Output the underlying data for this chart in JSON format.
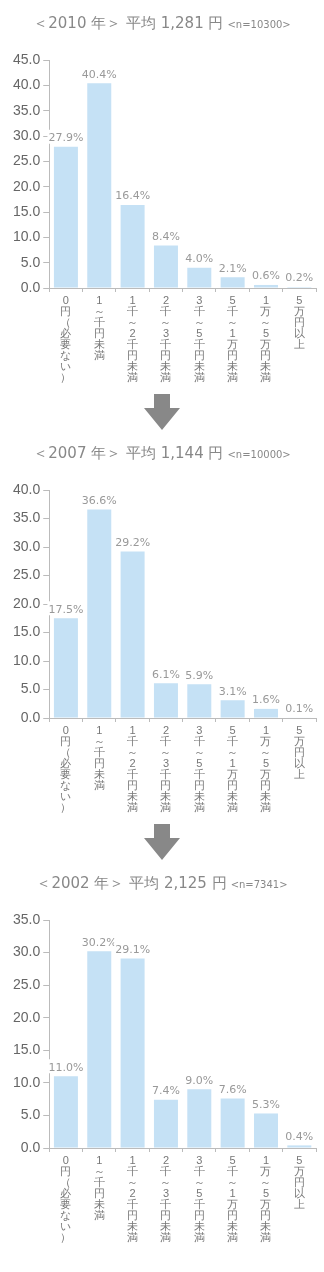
{
  "chart_data": [
    {
      "type": "bar",
      "title": "＜2010 年＞ 平均 1,281 円",
      "subtitle": "<n=10300>",
      "categories": [
        "0円（必要ない）",
        "1～千円未満",
        "1千～2千円未満",
        "2千～3千円未満",
        "3千～5千円未満",
        "5千～1万円未満",
        "1万～5万円未満",
        "5万円以上"
      ],
      "values": [
        27.9,
        40.4,
        16.4,
        8.4,
        4.0,
        2.1,
        0.6,
        0.2
      ],
      "value_labels": [
        "27.9%",
        "40.4%",
        "16.4%",
        "8.4%",
        "4.0%",
        "2.1%",
        "0.6%",
        "0.2%"
      ],
      "color": "#c5e1f5",
      "ylim": [
        0,
        45
      ],
      "yticks": [
        {
          "value": 0,
          "label": "0.0"
        },
        {
          "value": 5,
          "label": "5.0"
        },
        {
          "value": 10,
          "label": "10.0"
        },
        {
          "value": 15,
          "label": "15.0"
        },
        {
          "value": 20,
          "label": "20.0"
        },
        {
          "value": 25,
          "label": "25.0"
        },
        {
          "value": 30,
          "label": "30.0"
        },
        {
          "value": 35,
          "label": "35.0"
        },
        {
          "value": 40,
          "label": "40.0"
        },
        {
          "value": 45,
          "label": "45.0"
        }
      ]
    },
    {
      "type": "bar",
      "title": "＜2007 年＞ 平均 1,144 円",
      "subtitle": "<n=10000>",
      "categories": [
        "0円（必要ない）",
        "1～千円未満",
        "1千～2千円未満",
        "2千～3千円未満",
        "3千～5千円未満",
        "5千～1万円未満",
        "1万～5万円未満",
        "5万円以上"
      ],
      "values": [
        17.5,
        36.6,
        29.2,
        6.1,
        5.9,
        3.1,
        1.6,
        0.1
      ],
      "value_labels": [
        "17.5%",
        "36.6%",
        "29.2%",
        "6.1%",
        "5.9%",
        "3.1%",
        "1.6%",
        "0.1%"
      ],
      "color": "#c5e1f5",
      "ylim": [
        0,
        40
      ],
      "yticks": [
        {
          "value": 0,
          "label": "0.0"
        },
        {
          "value": 5,
          "label": "5.0"
        },
        {
          "value": 10,
          "label": "10.0"
        },
        {
          "value": 15,
          "label": "15.0"
        },
        {
          "value": 20,
          "label": "20.0"
        },
        {
          "value": 25,
          "label": "25.0"
        },
        {
          "value": 30,
          "label": "30.0"
        },
        {
          "value": 35,
          "label": "35.0"
        },
        {
          "value": 40,
          "label": "40.0"
        }
      ]
    },
    {
      "type": "bar",
      "title": "＜2002 年＞ 平均 2,125 円",
      "subtitle": "<n=7341>",
      "categories": [
        "0円（必要ない）",
        "1～千円未満",
        "1千～2千円未満",
        "2千～3千円未満",
        "3千～5千円未満",
        "5千～1万円未満",
        "1万～5万円未満",
        "5万円以上"
      ],
      "values": [
        11.0,
        30.2,
        29.1,
        7.4,
        9.0,
        7.6,
        5.3,
        0.4
      ],
      "value_labels": [
        "11.0%",
        "30.2%",
        "29.1%",
        "7.4%",
        "9.0%",
        "7.6%",
        "5.3%",
        "0.4%"
      ],
      "color": "#c5e1f5",
      "ylim": [
        0,
        35
      ],
      "yticks": [
        {
          "value": 0,
          "label": "0.0"
        },
        {
          "value": 5,
          "label": "5.0"
        },
        {
          "value": 10,
          "label": "10.0"
        },
        {
          "value": 15,
          "label": "15.0"
        },
        {
          "value": 20,
          "label": "20.0"
        },
        {
          "value": 25,
          "label": "25.0"
        },
        {
          "value": 30,
          "label": "30.0"
        },
        {
          "value": 35,
          "label": "35.0"
        }
      ]
    }
  ]
}
